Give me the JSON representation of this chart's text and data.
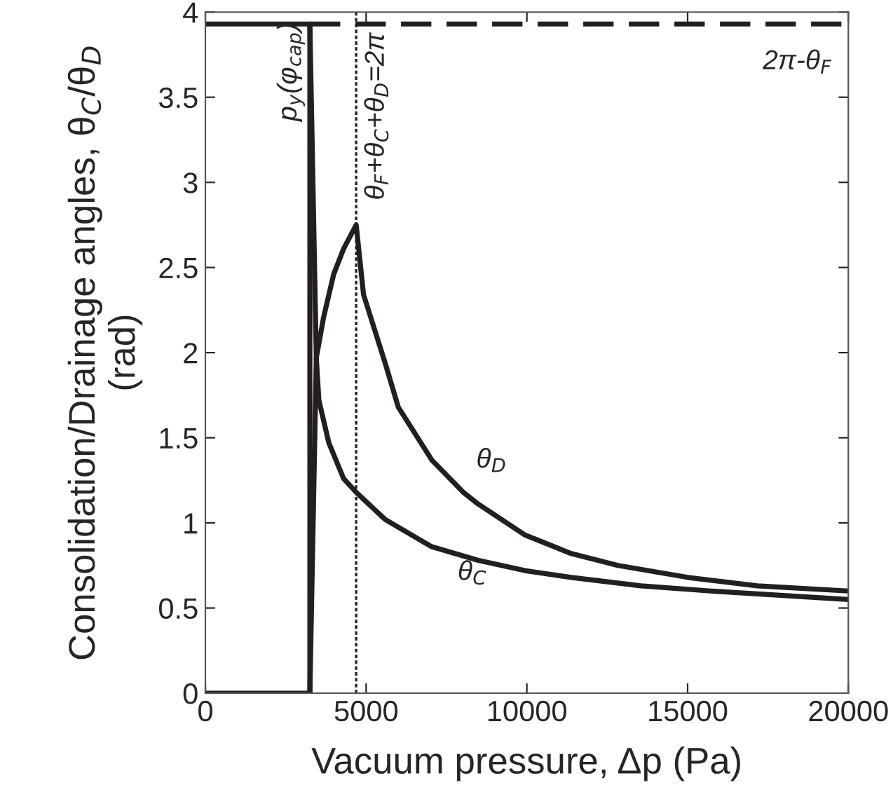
{
  "chart_data": {
    "type": "line",
    "xlabel": "Vacuum pressure, Δp (Pa)",
    "ylabel": "Consolidation/Drainage angles, θ$_{C}$/θ$_{D}$\n(rad)",
    "xlim": [
      0,
      20000
    ],
    "xticks": [
      0,
      5000,
      10000,
      15000,
      20000
    ],
    "ylim": [
      0,
      4
    ],
    "yticks": [
      0,
      0.5,
      1,
      1.5,
      2,
      2.5,
      3,
      3.5,
      4
    ],
    "grid": false,
    "legend": false,
    "marker": "none",
    "series": [
      {
        "name": "p$_{y}$(φ$_{cap}$)",
        "color": "#231f20",
        "line_style": "solid",
        "x": [
          0,
          3250,
          3250,
          0
        ],
        "values": [
          0,
          0,
          3.93,
          3.93
        ]
      },
      {
        "color": "#231f20",
        "line_style": "dashed",
        "x": [
          3250,
          20000
        ],
        "values": [
          3.93,
          3.93
        ]
      },
      {
        "name": "θ$_{D}$",
        "color": "#231f20",
        "line_style": "solid",
        "x": [
          3250,
          3450,
          3680,
          3990,
          4300,
          4690,
          4920,
          5590,
          6000,
          7040,
          8020,
          8490,
          9930,
          11380,
          12830,
          15000,
          17170,
          20000
        ],
        "values": [
          0,
          1.97,
          2.21,
          2.46,
          2.61,
          2.75,
          2.34,
          1.94,
          1.68,
          1.37,
          1.18,
          1.11,
          0.93,
          0.82,
          0.75,
          0.68,
          0.63,
          0.6
        ]
      },
      {
        "name": "θ$_{C}$",
        "color": "#231f20",
        "line_style": "solid",
        "x": [
          3250,
          3450,
          3530,
          3840,
          4300,
          4690,
          5590,
          7040,
          8490,
          9930,
          11380,
          13550,
          15720,
          20000
        ],
        "values": [
          3.93,
          1.97,
          1.72,
          1.47,
          1.26,
          1.18,
          1.02,
          0.86,
          0.78,
          0.72,
          0.68,
          0.63,
          0.6,
          0.55
        ]
      }
    ],
    "ref_lines": [
      {
        "axis": "x",
        "value": 4690,
        "color": "#231f20",
        "line_style": "dotted"
      }
    ],
    "annotations": [
      "θ$_{F}$+θ$_{C}$+θ$_{D}$=2π",
      "2π-θ$_{F}$"
    ]
  }
}
